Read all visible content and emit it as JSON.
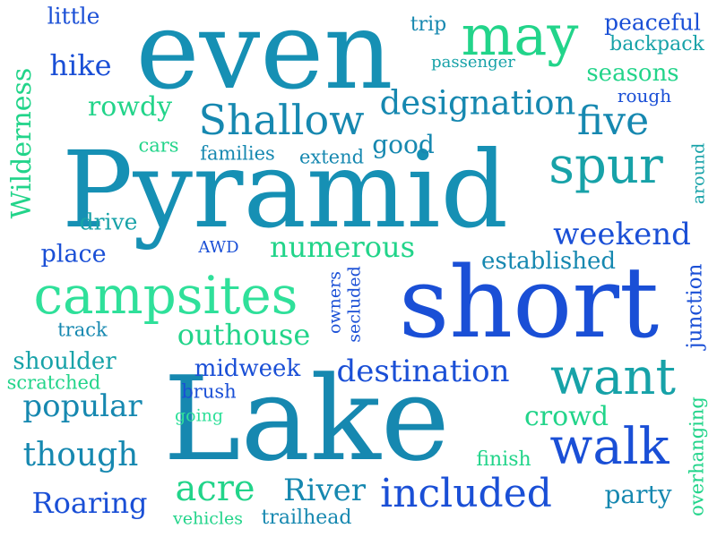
{
  "palette": {
    "blue": "#1a4fd6",
    "navy": "#1f3fc0",
    "teal": "#1688b0",
    "cyan": "#17a2a8",
    "green": "#22d48a",
    "mint": "#2fe09a"
  },
  "words": [
    {
      "text": "even",
      "color": "#1690b4"
    },
    {
      "text": "Pyramid",
      "color": "#1690b4"
    },
    {
      "text": "short",
      "color": "#1a4fd6"
    },
    {
      "text": "Lake",
      "color": "#1688b0"
    },
    {
      "text": "may",
      "color": "#22d48a"
    },
    {
      "text": "Shallow",
      "color": "#1688b0"
    },
    {
      "text": "campsites",
      "color": "#2fe09a"
    },
    {
      "text": "spur",
      "color": "#17a2a8"
    },
    {
      "text": "want",
      "color": "#17a2a8"
    },
    {
      "text": "walk",
      "color": "#1a4fd6"
    },
    {
      "text": "designation",
      "color": "#1688b0"
    },
    {
      "text": "five",
      "color": "#1688b0"
    },
    {
      "text": "included",
      "color": "#1a4fd6"
    },
    {
      "text": "destination",
      "color": "#1a4fd6"
    },
    {
      "text": "weekend",
      "color": "#1a4fd6"
    },
    {
      "text": "numerous",
      "color": "#22d48a"
    },
    {
      "text": "outhouse",
      "color": "#22d48a"
    },
    {
      "text": "established",
      "color": "#1688b0"
    },
    {
      "text": "popular",
      "color": "#1688b0"
    },
    {
      "text": "though",
      "color": "#1688b0"
    },
    {
      "text": "Roaring",
      "color": "#1a4fd6"
    },
    {
      "text": "acre",
      "color": "#22d48a"
    },
    {
      "text": "River",
      "color": "#1688b0"
    },
    {
      "text": "crowd",
      "color": "#22d48a"
    },
    {
      "text": "party",
      "color": "#1688b0"
    },
    {
      "text": "Wilderness",
      "color": "#22d48a"
    },
    {
      "text": "peaceful",
      "color": "#1a4fd6"
    },
    {
      "text": "hike",
      "color": "#1a4fd6"
    },
    {
      "text": "rowdy",
      "color": "#22d48a"
    },
    {
      "text": "good",
      "color": "#1688b0"
    },
    {
      "text": "little",
      "color": "#1a4fd6"
    },
    {
      "text": "trip",
      "color": "#1688b0"
    },
    {
      "text": "backpack",
      "color": "#17a2a8"
    },
    {
      "text": "passenger",
      "color": "#17a2a8"
    },
    {
      "text": "seasons",
      "color": "#22d48a"
    },
    {
      "text": "rough",
      "color": "#1a4fd6"
    },
    {
      "text": "families",
      "color": "#1688b0"
    },
    {
      "text": "extend",
      "color": "#1688b0"
    },
    {
      "text": "cars",
      "color": "#22d48a"
    },
    {
      "text": "drive",
      "color": "#17a2a8"
    },
    {
      "text": "place",
      "color": "#1a4fd6"
    },
    {
      "text": "AWD",
      "color": "#1a4fd6"
    },
    {
      "text": "track",
      "color": "#1688b0"
    },
    {
      "text": "shoulder",
      "color": "#17a2a8"
    },
    {
      "text": "scratched",
      "color": "#22d48a"
    },
    {
      "text": "midweek",
      "color": "#1a4fd6"
    },
    {
      "text": "brush",
      "color": "#1a4fd6"
    },
    {
      "text": "going",
      "color": "#2fe09a"
    },
    {
      "text": "finish",
      "color": "#22d48a"
    },
    {
      "text": "vehicles",
      "color": "#22d48a"
    },
    {
      "text": "trailhead",
      "color": "#1688b0"
    },
    {
      "text": "owners",
      "color": "#1a4fd6"
    },
    {
      "text": "secluded",
      "color": "#1a4fd6"
    },
    {
      "text": "around",
      "color": "#17a2a8"
    },
    {
      "text": "junction",
      "color": "#1a4fd6"
    },
    {
      "text": "overhanging",
      "color": "#22d48a"
    }
  ]
}
